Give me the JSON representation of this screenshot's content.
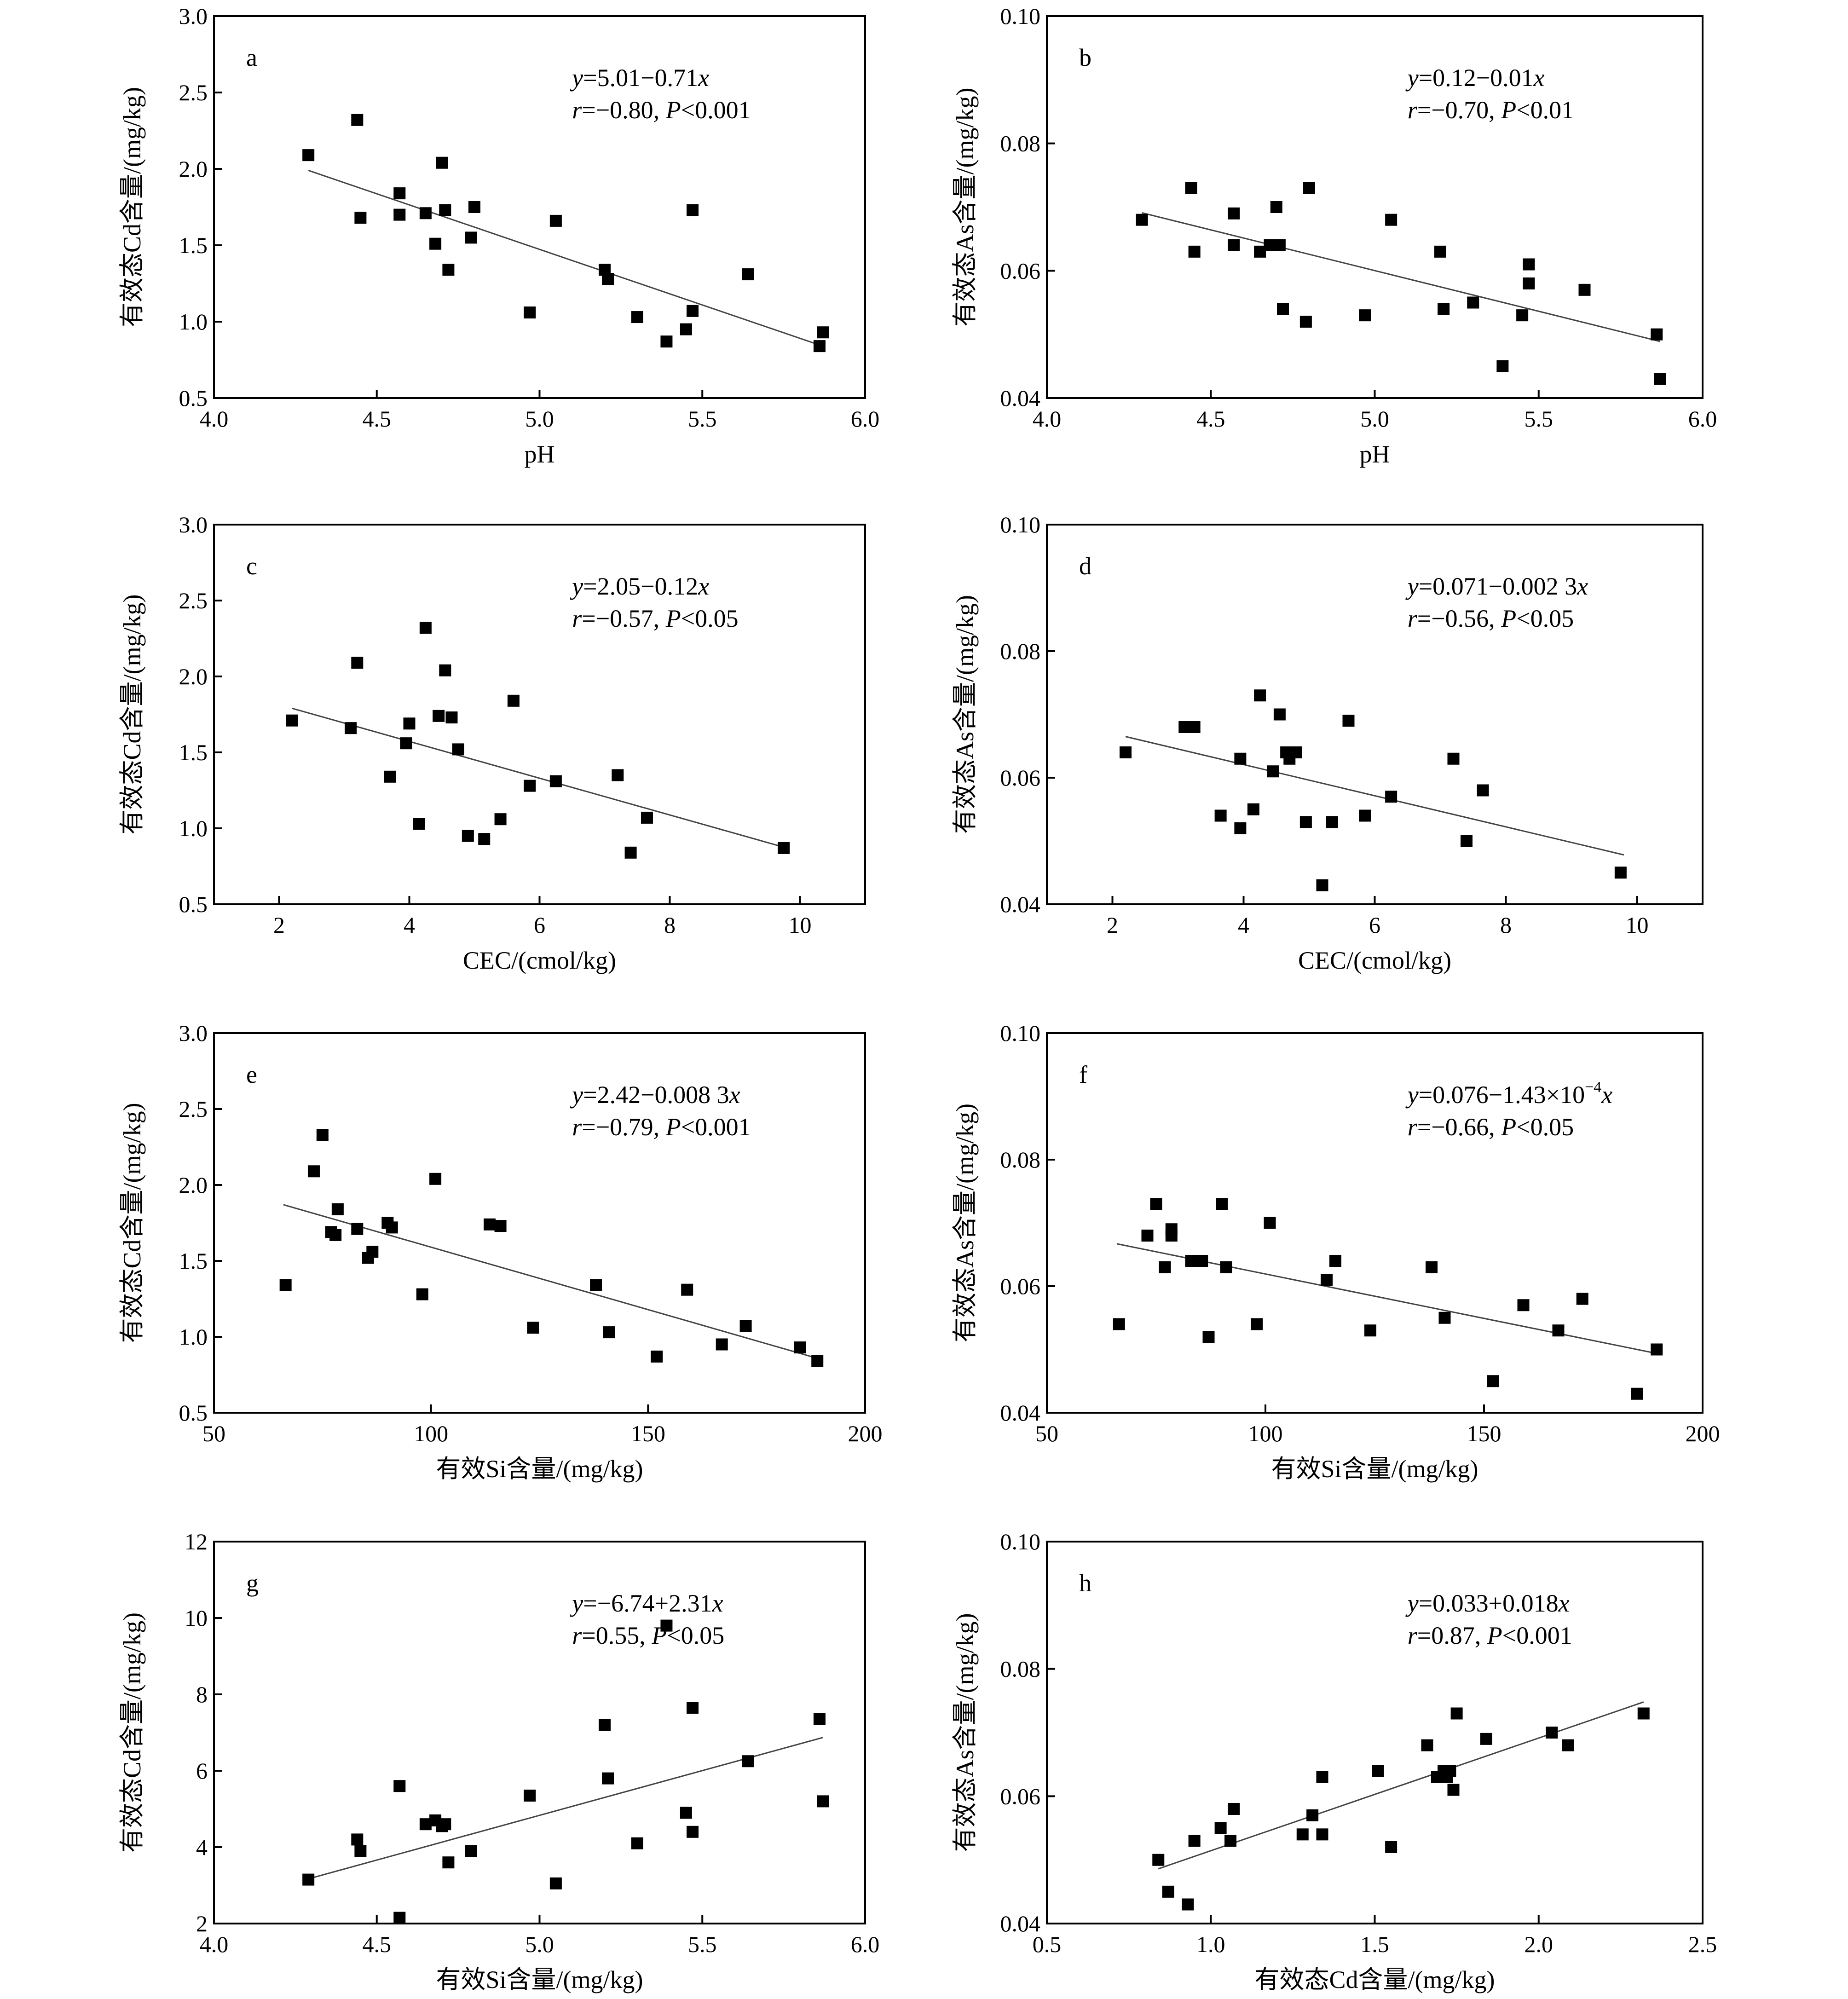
{
  "chart_data": [
    {
      "id": "a",
      "type": "scatter",
      "panel_label": "a",
      "xlabel": "pH",
      "ylabel": "有效态Cd含量/(mg/kg)",
      "xlim": [
        4.0,
        6.0
      ],
      "ylim": [
        0.5,
        3.0
      ],
      "xticks": [
        "4.0",
        "4.5",
        "5.0",
        "5.5",
        "6.0"
      ],
      "yticks": [
        "0.5",
        "1.0",
        "1.5",
        "2.0",
        "2.5",
        "3.0"
      ],
      "equation": {
        "lhs": "y",
        "rhs": "=5.01−0.71",
        "x": "x"
      },
      "stats": {
        "r": "r",
        "r_text": "=−0.80, ",
        "p": "P",
        "p_text": "<0.001"
      },
      "fit_line": {
        "x": [
          4.29,
          5.87
        ],
        "y": [
          1.99,
          0.84
        ]
      },
      "points": {
        "x": [
          4.29,
          4.44,
          4.45,
          4.57,
          4.57,
          4.65,
          4.68,
          4.7,
          4.71,
          4.72,
          4.79,
          4.8,
          4.97,
          5.05,
          5.2,
          5.21,
          5.3,
          5.39,
          5.45,
          5.47,
          5.47,
          5.64,
          5.86,
          5.87
        ],
        "y": [
          2.09,
          2.32,
          1.68,
          1.84,
          1.7,
          1.71,
          1.51,
          2.04,
          1.73,
          1.34,
          1.55,
          1.75,
          1.06,
          1.66,
          1.34,
          1.28,
          1.03,
          0.87,
          0.95,
          1.07,
          1.73,
          1.31,
          0.84,
          0.93
        ]
      }
    },
    {
      "id": "b",
      "type": "scatter",
      "panel_label": "b",
      "xlabel": "pH",
      "ylabel": "有效态As含量/(mg/kg)",
      "xlim": [
        4.0,
        6.0
      ],
      "ylim": [
        0.04,
        0.1
      ],
      "xticks": [
        "4.0",
        "4.5",
        "5.0",
        "5.5",
        "6.0"
      ],
      "yticks": [
        "0.04",
        "0.06",
        "0.08",
        "0.10"
      ],
      "equation": {
        "lhs": "y",
        "rhs": "=0.12−0.01",
        "x": "x"
      },
      "stats": {
        "r": "r",
        "r_text": "=−0.70, ",
        "p": "P",
        "p_text": "<0.01"
      },
      "fit_line": {
        "x": [
          4.29,
          5.87
        ],
        "y": [
          0.0691,
          0.0489
        ]
      },
      "points": {
        "x": [
          4.29,
          4.44,
          4.45,
          4.57,
          4.57,
          4.65,
          4.68,
          4.7,
          4.71,
          4.72,
          4.79,
          4.8,
          4.97,
          5.05,
          5.2,
          5.21,
          5.3,
          5.39,
          5.45,
          5.47,
          5.47,
          5.64,
          5.86,
          5.87
        ],
        "y": [
          0.068,
          0.073,
          0.063,
          0.069,
          0.064,
          0.063,
          0.064,
          0.07,
          0.064,
          0.054,
          0.052,
          0.073,
          0.053,
          0.068,
          0.063,
          0.054,
          0.055,
          0.045,
          0.053,
          0.058,
          0.061,
          0.057,
          0.05,
          0.043
        ]
      }
    },
    {
      "id": "c",
      "type": "scatter",
      "panel_label": "c",
      "xlabel": "CEC/(cmol/kg)",
      "ylabel": "有效态Cd含量/(mg/kg)",
      "xlim": [
        1.0,
        11.0
      ],
      "ylim": [
        0.5,
        3.0
      ],
      "xticks": [
        "2",
        "4",
        "6",
        "8",
        "10"
      ],
      "xtick_values": [
        2,
        4,
        6,
        8,
        10
      ],
      "yticks": [
        "0.5",
        "1.0",
        "1.5",
        "2.0",
        "2.5",
        "3.0"
      ],
      "equation": {
        "lhs": "y",
        "rhs": "=2.05−0.12",
        "x": "x"
      },
      "stats": {
        "r": "r",
        "r_text": "=−0.57, ",
        "p": "P",
        "p_text": "<0.05"
      },
      "fit_line": {
        "x": [
          2.2,
          9.8
        ],
        "y": [
          1.79,
          0.87
        ]
      },
      "points": {
        "x": [
          2.2,
          3.1,
          3.2,
          3.7,
          3.95,
          4.0,
          4.15,
          4.25,
          4.45,
          4.55,
          4.65,
          4.75,
          4.9,
          5.15,
          5.4,
          5.6,
          5.85,
          6.25,
          7.2,
          7.4,
          7.65,
          9.75
        ],
        "y": [
          1.71,
          1.66,
          2.09,
          1.34,
          1.56,
          1.69,
          1.03,
          2.32,
          1.74,
          2.04,
          1.73,
          1.52,
          0.95,
          0.93,
          1.06,
          1.84,
          1.28,
          1.31,
          1.35,
          0.84,
          1.07,
          0.87
        ]
      }
    },
    {
      "id": "d",
      "type": "scatter",
      "panel_label": "d",
      "xlabel": "CEC/(cmol/kg)",
      "ylabel": "有效态As含量/(mg/kg)",
      "xlim": [
        1.0,
        11.0
      ],
      "ylim": [
        0.04,
        0.1
      ],
      "xticks": [
        "2",
        "4",
        "6",
        "8",
        "10"
      ],
      "xtick_values": [
        2,
        4,
        6,
        8,
        10
      ],
      "yticks": [
        "0.04",
        "0.06",
        "0.08",
        "0.10"
      ],
      "equation": {
        "lhs": "y",
        "rhs": "=0.071−0.002 3",
        "x": "x"
      },
      "stats": {
        "r": "r",
        "r_text": "=−0.56, ",
        "p": "P",
        "p_text": "<0.05"
      },
      "fit_line": {
        "x": [
          2.2,
          9.8
        ],
        "y": [
          0.0665,
          0.0478
        ]
      },
      "points": {
        "x": [
          2.2,
          3.1,
          3.25,
          3.65,
          3.95,
          3.95,
          4.15,
          4.25,
          4.45,
          4.55,
          4.65,
          4.7,
          4.8,
          4.95,
          5.2,
          5.35,
          5.6,
          5.85,
          6.25,
          7.2,
          7.4,
          7.65,
          9.75
        ],
        "y": [
          0.064,
          0.068,
          0.068,
          0.054,
          0.063,
          0.052,
          0.055,
          0.073,
          0.061,
          0.07,
          0.064,
          0.063,
          0.064,
          0.053,
          0.043,
          0.053,
          0.069,
          0.054,
          0.057,
          0.063,
          0.05,
          0.058,
          0.045
        ]
      }
    },
    {
      "id": "e",
      "type": "scatter",
      "panel_label": "e",
      "xlabel": "有效Si含量/(mg/kg)",
      "ylabel": "有效态Cd含量/(mg/kg)",
      "xlim": [
        50,
        200
      ],
      "ylim": [
        0.5,
        3.0
      ],
      "xticks": [
        "50",
        "100",
        "150",
        "200"
      ],
      "yticks": [
        "0.5",
        "1.0",
        "1.5",
        "2.0",
        "2.5",
        "3.0"
      ],
      "equation": {
        "lhs": "y",
        "rhs": "=2.42−0.008 3",
        "x": "x"
      },
      "stats": {
        "r": "r",
        "r_text": "=−0.79, ",
        "p": "P",
        "p_text": "<0.001"
      },
      "fit_line": {
        "x": [
          66,
          190
        ],
        "y": [
          1.87,
          0.85
        ]
      },
      "points": {
        "x": [
          66.5,
          73,
          75,
          77,
          78,
          78.5,
          83,
          85.5,
          86.5,
          90,
          91,
          98,
          101,
          113.5,
          116,
          123.5,
          138,
          141,
          152,
          159,
          167,
          172.5,
          185,
          189
        ],
        "y": [
          1.34,
          2.09,
          2.33,
          1.69,
          1.67,
          1.84,
          1.71,
          1.52,
          1.56,
          1.75,
          1.72,
          1.28,
          2.04,
          1.74,
          1.73,
          1.06,
          1.34,
          1.03,
          0.87,
          1.31,
          0.95,
          1.07,
          0.93,
          0.84
        ]
      }
    },
    {
      "id": "f",
      "type": "scatter",
      "panel_label": "f",
      "xlabel": "有效Si含量/(mg/kg)",
      "ylabel": "有效态As含量/(mg/kg)",
      "xlim": [
        50,
        200
      ],
      "ylim": [
        0.04,
        0.1
      ],
      "xticks": [
        "50",
        "100",
        "150",
        "200"
      ],
      "yticks": [
        "0.04",
        "0.06",
        "0.08",
        "0.10"
      ],
      "equation": {
        "lhs": "y",
        "rhs": "=0.076−1.43×10",
        "sup": "−4",
        "x": "x"
      },
      "stats": {
        "r": "r",
        "r_text": "=−0.66, ",
        "p": "P",
        "p_text": "<0.05"
      },
      "fit_line": {
        "x": [
          66,
          190
        ],
        "y": [
          0.0667,
          0.0493
        ]
      },
      "points": {
        "x": [
          66.5,
          73,
          75,
          77,
          78.5,
          78.5,
          83,
          85.5,
          87,
          90,
          91,
          98,
          101,
          114,
          116,
          124,
          138,
          141,
          152,
          159,
          167,
          172.5,
          185,
          189.5
        ],
        "y": [
          0.054,
          0.068,
          0.073,
          0.063,
          0.068,
          0.069,
          0.064,
          0.064,
          0.052,
          0.073,
          0.063,
          0.054,
          0.07,
          0.061,
          0.064,
          0.053,
          0.063,
          0.055,
          0.045,
          0.057,
          0.053,
          0.058,
          0.043,
          0.05
        ]
      }
    },
    {
      "id": "g",
      "type": "scatter",
      "panel_label": "g",
      "xlabel": "有效Si含量/(mg/kg)",
      "ylabel": "有效态Cd含量/(mg/kg)",
      "xlim": [
        4.0,
        6.0
      ],
      "ylim": [
        2,
        12
      ],
      "xticks": [
        "4.0",
        "4.5",
        "5.0",
        "5.5",
        "6.0"
      ],
      "yticks": [
        "2",
        "4",
        "6",
        "8",
        "10",
        "12"
      ],
      "equation": {
        "lhs": "y",
        "rhs": "=−6.74+2.31",
        "x": "x"
      },
      "stats": {
        "r": "r",
        "r_text": "=0.55, ",
        "p": "P",
        "p_text": "<0.05"
      },
      "fit_line": {
        "x": [
          4.29,
          5.87
        ],
        "y": [
          3.17,
          6.87
        ]
      },
      "points": {
        "x": [
          4.29,
          4.44,
          4.45,
          4.57,
          4.57,
          4.65,
          4.68,
          4.7,
          4.71,
          4.72,
          4.79,
          4.97,
          5.05,
          5.2,
          5.21,
          5.3,
          5.39,
          5.45,
          5.47,
          5.47,
          5.64,
          5.86,
          5.87
        ],
        "y": [
          3.15,
          4.2,
          3.9,
          5.6,
          2.15,
          4.6,
          4.7,
          4.55,
          4.6,
          3.6,
          3.9,
          5.35,
          3.05,
          7.2,
          5.8,
          4.1,
          9.8,
          4.9,
          7.65,
          4.4,
          6.25,
          7.35,
          5.2
        ]
      }
    },
    {
      "id": "h",
      "type": "scatter",
      "panel_label": "h",
      "xlabel": "有效态Cd含量/(mg/kg)",
      "ylabel": "有效态As含量/(mg/kg)",
      "xlim": [
        0.5,
        2.5
      ],
      "ylim": [
        0.04,
        0.1
      ],
      "xticks": [
        "0.5",
        "1.0",
        "1.5",
        "2.0",
        "2.5"
      ],
      "yticks": [
        "0.04",
        "0.06",
        "0.08",
        "0.10"
      ],
      "equation": {
        "lhs": "y",
        "rhs": "=0.033+0.018",
        "x": "x"
      },
      "stats": {
        "r": "r",
        "r_text": "=0.87, ",
        "p": "P",
        "p_text": "<0.001"
      },
      "fit_line": {
        "x": [
          0.84,
          2.32
        ],
        "y": [
          0.0486,
          0.0748
        ]
      },
      "points": {
        "x": [
          0.84,
          0.87,
          0.93,
          0.95,
          1.03,
          1.06,
          1.07,
          1.28,
          1.31,
          1.34,
          1.34,
          1.51,
          1.55,
          1.66,
          1.69,
          1.71,
          1.72,
          1.73,
          1.74,
          1.75,
          1.84,
          2.04,
          2.09,
          2.32
        ],
        "y": [
          0.05,
          0.045,
          0.043,
          0.053,
          0.055,
          0.053,
          0.058,
          0.054,
          0.057,
          0.054,
          0.063,
          0.064,
          0.052,
          0.068,
          0.063,
          0.064,
          0.063,
          0.064,
          0.061,
          0.073,
          0.069,
          0.07,
          0.068,
          0.073
        ]
      }
    }
  ]
}
